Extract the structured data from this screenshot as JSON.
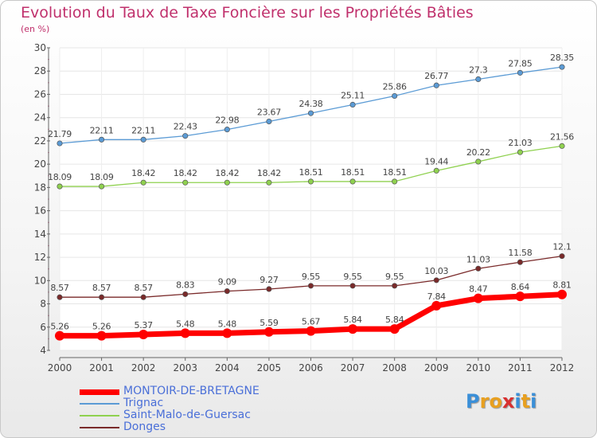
{
  "title": "Evolution du Taux de Taxe Foncière sur les Propriétés Bâties",
  "subtitle": "(en %)",
  "logo_text": "Proxiti",
  "chart_data": {
    "type": "line",
    "title": "Evolution du Taux de Taxe Foncière sur les Propriétés Bâties",
    "ylabel": "(en %)",
    "xlabel": "",
    "x": [
      "2000",
      "2001",
      "2002",
      "2003",
      "2004",
      "2005",
      "2006",
      "2007",
      "2008",
      "2009",
      "2010",
      "2011",
      "2012"
    ],
    "ylim": [
      4,
      30
    ],
    "yticks": [
      4,
      6,
      8,
      10,
      12,
      14,
      16,
      18,
      20,
      22,
      24,
      26,
      28,
      30
    ],
    "series": [
      {
        "name": "MONTOIR-DE-BRETAGNE",
        "color": "#ff0000",
        "values": [
          5.26,
          5.26,
          5.37,
          5.48,
          5.48,
          5.59,
          5.67,
          5.84,
          5.84,
          7.84,
          8.47,
          8.64,
          8.81
        ],
        "labels": [
          "5.26",
          "5.26",
          "5.37",
          "5.48",
          "5.48",
          "5.59",
          "5.67",
          "5.84",
          "5.84",
          "7.84",
          "8.47",
          "8.64",
          "8.81"
        ]
      },
      {
        "name": "Trignac",
        "color": "#5b9bd5",
        "values": [
          21.79,
          22.11,
          22.11,
          22.43,
          22.98,
          23.67,
          24.38,
          25.11,
          25.86,
          26.77,
          27.3,
          27.85,
          28.35
        ],
        "labels": [
          "21.79",
          "22.11",
          "22.11",
          "22.43",
          "22.98",
          "23.67",
          "24.38",
          "25.11",
          "25.86",
          "26.77",
          "27.3",
          "27.85",
          "28.35"
        ]
      },
      {
        "name": "Saint-Malo-de-Guersac",
        "color": "#8fd14f",
        "values": [
          18.09,
          18.09,
          18.42,
          18.42,
          18.42,
          18.42,
          18.51,
          18.51,
          18.51,
          19.44,
          20.22,
          21.03,
          21.56
        ],
        "labels": [
          "18.09",
          "18.09",
          "18.42",
          "18.42",
          "18.42",
          "18.42",
          "18.51",
          "18.51",
          "18.51",
          "19.44",
          "20.22",
          "21.03",
          "21.56"
        ]
      },
      {
        "name": "Donges",
        "color": "#7a2a2a",
        "values": [
          8.57,
          8.57,
          8.57,
          8.83,
          9.09,
          9.27,
          9.55,
          9.55,
          9.55,
          10.03,
          11.03,
          11.58,
          12.1
        ],
        "labels": [
          "8.57",
          "8.57",
          "8.57",
          "8.83",
          "9.09",
          "9.27",
          "9.55",
          "9.55",
          "9.55",
          "10.03",
          "11.03",
          "11.58",
          "12.1"
        ]
      }
    ],
    "legend_position": "bottom-left"
  }
}
